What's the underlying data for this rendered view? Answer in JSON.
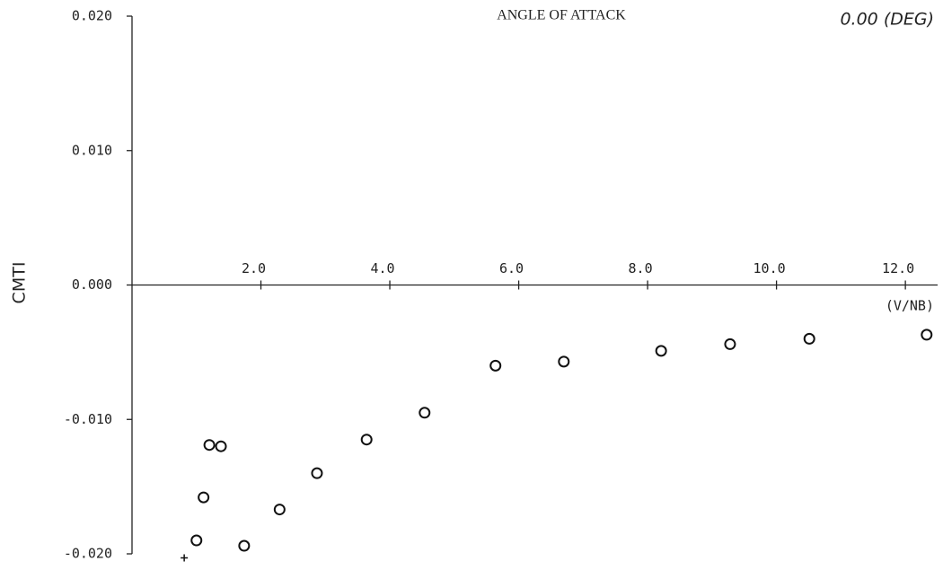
{
  "chart_data": {
    "type": "scatter",
    "annotations": [
      "ANGLE OF ATTACK",
      "0.00 (DEG)"
    ],
    "ylabel": "CMTI",
    "xlabel": "(V/NB)",
    "color": "#111111",
    "xlim": [
      0,
      12.5
    ],
    "ylim": [
      -0.02,
      0.02
    ],
    "xticks": [
      {
        "value": 2,
        "label": "2.0"
      },
      {
        "value": 4,
        "label": "4.0"
      },
      {
        "value": 6,
        "label": "6.0"
      },
      {
        "value": 8,
        "label": "8.0"
      },
      {
        "value": 10,
        "label": "10.0"
      },
      {
        "value": 12,
        "label": "12.0"
      }
    ],
    "yticks": [
      {
        "value": -0.02,
        "label": "-0.020"
      },
      {
        "value": -0.01,
        "label": "-0.010"
      },
      {
        "value": 0,
        "label": "0.000"
      },
      {
        "value": 0.01,
        "label": "0.010"
      },
      {
        "value": 0.02,
        "label": "0.020"
      }
    ],
    "series": [
      {
        "marker": "circle",
        "x": [
          1.0,
          1.11,
          1.2,
          1.38,
          1.74,
          2.29,
          2.87,
          3.64,
          4.54,
          5.64,
          6.7,
          8.21,
          9.28,
          10.51,
          12.33
        ],
        "values": [
          -0.019,
          -0.0158,
          -0.0119,
          -0.012,
          -0.0194,
          -0.0167,
          -0.014,
          -0.0115,
          -0.0095,
          -0.006,
          -0.0057,
          -0.0049,
          -0.0044,
          -0.004,
          -0.0037
        ]
      },
      {
        "marker": "plus",
        "x": [
          0.81
        ],
        "values": [
          -0.0203
        ]
      }
    ]
  }
}
